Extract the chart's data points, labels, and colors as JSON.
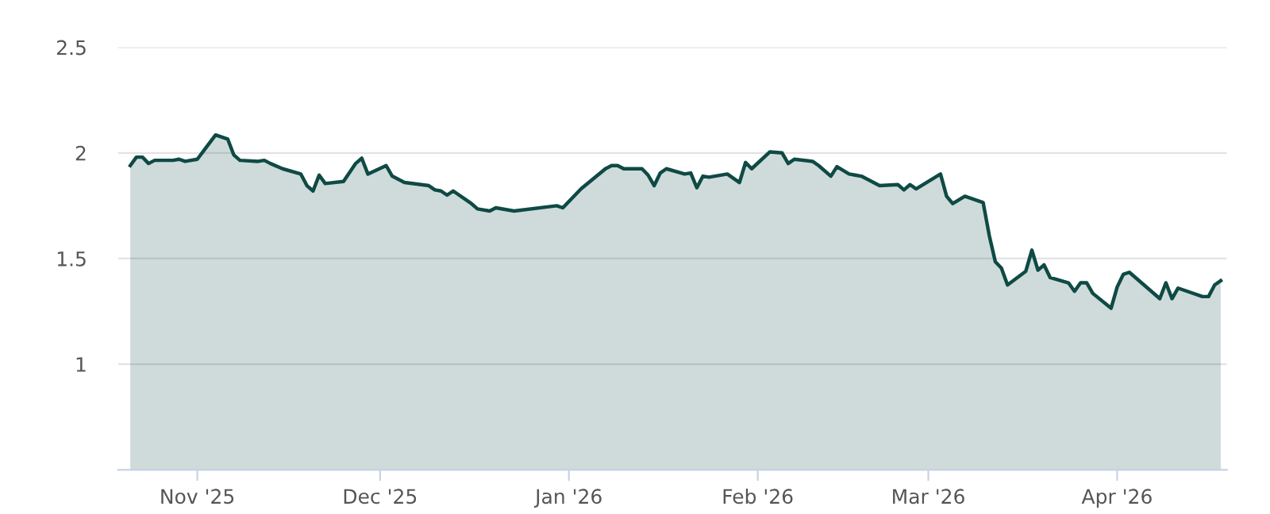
{
  "chart_data": {
    "type": "area",
    "x": [
      "2025-10-21",
      "2025-10-22",
      "2025-10-23",
      "2025-10-24",
      "2025-10-25",
      "2025-10-28",
      "2025-10-29",
      "2025-10-30",
      "2025-11-01",
      "2025-11-04",
      "2025-11-06",
      "2025-11-07",
      "2025-11-08",
      "2025-11-11",
      "2025-11-12",
      "2025-11-13",
      "2025-11-15",
      "2025-11-18",
      "2025-11-19",
      "2025-11-20",
      "2025-11-21",
      "2025-11-22",
      "2025-11-25",
      "2025-11-27",
      "2025-11-28",
      "2025-11-29",
      "2025-12-02",
      "2025-12-03",
      "2025-12-05",
      "2025-12-09",
      "2025-12-10",
      "2025-12-11",
      "2025-12-12",
      "2025-12-13",
      "2025-12-16",
      "2025-12-17",
      "2025-12-19",
      "2025-12-20",
      "2025-12-23",
      "2025-12-30",
      "2025-12-31",
      "2026-01-03",
      "2026-01-07",
      "2026-01-08",
      "2026-01-09",
      "2026-01-10",
      "2026-01-13",
      "2026-01-14",
      "2026-01-15",
      "2026-01-16",
      "2026-01-17",
      "2026-01-20",
      "2026-01-21",
      "2026-01-22",
      "2026-01-23",
      "2026-01-24",
      "2026-01-27",
      "2026-01-29",
      "2026-01-30",
      "2026-01-31",
      "2026-02-03",
      "2026-02-05",
      "2026-02-06",
      "2026-02-07",
      "2026-02-10",
      "2026-02-11",
      "2026-02-13",
      "2026-02-14",
      "2026-02-16",
      "2026-02-17",
      "2026-02-18",
      "2026-02-21",
      "2026-02-24",
      "2026-02-25",
      "2026-02-26",
      "2026-02-27",
      "2026-03-03",
      "2026-03-04",
      "2026-03-05",
      "2026-03-07",
      "2026-03-10",
      "2026-03-11",
      "2026-03-12",
      "2026-03-13",
      "2026-03-14",
      "2026-03-17",
      "2026-03-18",
      "2026-03-19",
      "2026-03-20",
      "2026-03-21",
      "2026-03-24",
      "2026-03-25",
      "2026-03-26",
      "2026-03-27",
      "2026-03-28",
      "2026-03-31",
      "2026-04-01",
      "2026-04-02",
      "2026-04-03",
      "2026-04-08",
      "2026-04-09",
      "2026-04-10",
      "2026-04-11",
      "2026-04-15",
      "2026-04-16",
      "2026-04-17",
      "2026-04-18"
    ],
    "series": [
      {
        "color": "#0f4a45",
        "values": [
          1.94,
          1.98,
          1.98,
          1.95,
          1.965,
          1.965,
          1.97,
          1.96,
          1.97,
          2.085,
          2.065,
          1.99,
          1.965,
          1.96,
          1.965,
          1.95,
          1.925,
          1.9,
          1.845,
          1.82,
          1.895,
          1.855,
          1.865,
          1.95,
          1.975,
          1.9,
          1.94,
          1.89,
          1.86,
          1.845,
          1.825,
          1.82,
          1.8,
          1.82,
          1.76,
          1.735,
          1.725,
          1.74,
          1.725,
          1.75,
          1.74,
          1.83,
          1.925,
          1.94,
          1.94,
          1.925,
          1.925,
          1.895,
          1.845,
          1.905,
          1.925,
          1.9,
          1.905,
          1.835,
          1.89,
          1.885,
          1.9,
          1.86,
          1.955,
          1.925,
          2.005,
          2.0,
          1.95,
          1.97,
          1.96,
          1.94,
          1.89,
          1.935,
          1.9,
          1.895,
          1.89,
          1.845,
          1.85,
          1.825,
          1.85,
          1.83,
          1.9,
          1.795,
          1.76,
          1.795,
          1.765,
          1.61,
          1.485,
          1.455,
          1.375,
          1.44,
          1.54,
          1.445,
          1.47,
          1.41,
          1.385,
          1.345,
          1.385,
          1.385,
          1.335,
          1.265,
          1.365,
          1.425,
          1.435,
          1.31,
          1.385,
          1.31,
          1.36,
          1.32,
          1.32,
          1.375,
          1.395
        ]
      }
    ],
    "xlim": [
      "2025-10-19",
      "2026-04-19"
    ],
    "xticks": [
      {
        "value": "2025-11-01",
        "label": "Nov '25"
      },
      {
        "value": "2025-12-01",
        "label": "Dec '25"
      },
      {
        "value": "2026-01-01",
        "label": "Jan '26"
      },
      {
        "value": "2026-02-01",
        "label": "Feb '26"
      },
      {
        "value": "2026-03-01",
        "label": "Mar '26"
      },
      {
        "value": "2026-04-01",
        "label": "Apr '26"
      }
    ],
    "ylim": [
      0.5,
      2.5
    ],
    "yticks": [
      {
        "value": 0.5,
        "label": null
      },
      1,
      1.5,
      2,
      2.5
    ],
    "grid": "y",
    "legend": false,
    "marker": "none",
    "line_style": "solid"
  }
}
